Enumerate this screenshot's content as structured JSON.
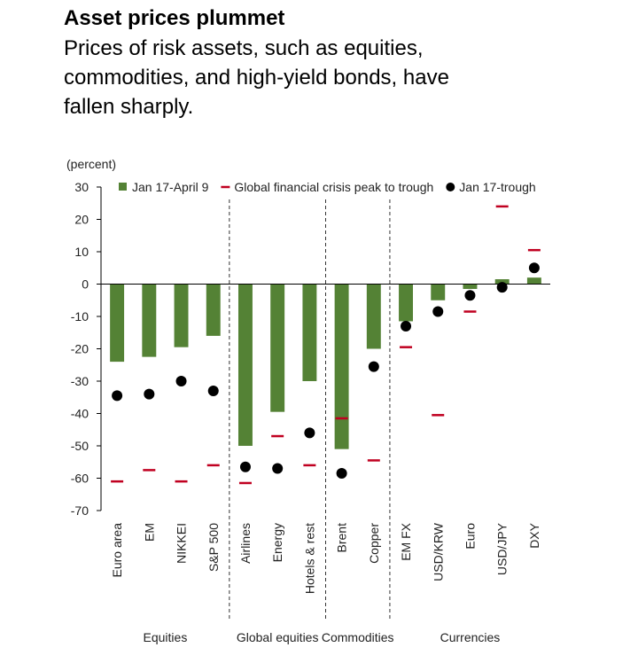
{
  "chart_data": {
    "type": "bar",
    "title": "Asset prices plummet",
    "subtitle": [
      "Prices of risk assets, such as equities,",
      "commodities, and high-yield bonds, have",
      "fallen sharply."
    ],
    "y_label": "(percent)",
    "groups": [
      {
        "label": "Equities",
        "categories": [
          "Euro area",
          "EM",
          "NIKKEI",
          "S&P 500"
        ]
      },
      {
        "label": "Global equities",
        "categories": [
          "Airlines",
          "Energy",
          "Hotels & rest"
        ]
      },
      {
        "label": "Commodities",
        "categories": [
          "Brent",
          "Copper"
        ]
      },
      {
        "label": "Currencies",
        "categories": [
          "EM FX",
          "USD/KRW",
          "Euro",
          "USD/JPY",
          "DXY"
        ]
      }
    ],
    "series": [
      {
        "name": "Jan 17-April 9",
        "mark": "bar",
        "color": "#548235",
        "values": [
          -24,
          -22.5,
          -19.5,
          -16,
          -50,
          -39.5,
          -30,
          -51,
          -20,
          -11.5,
          -5,
          -1.5,
          1.5,
          2
        ]
      },
      {
        "name": "Global financial crisis peak to trough",
        "mark": "dash",
        "color": "#c00020",
        "values": [
          -61,
          -57.5,
          -61,
          -56,
          -61.5,
          -47,
          -56,
          -41.5,
          -54.5,
          -19.5,
          -40.5,
          -8.5,
          24,
          10.5
        ]
      },
      {
        "name": "Jan 17-trough",
        "mark": "dot",
        "color": "#000000",
        "values": [
          -34.5,
          -34,
          -30,
          -33,
          -56.5,
          -57,
          -46,
          -58.5,
          -25.5,
          -13,
          -8.5,
          -3.5,
          -1,
          5
        ]
      }
    ],
    "ylim": [
      -70,
      30
    ],
    "yticks": [
      -70,
      -60,
      -50,
      -40,
      -30,
      -20,
      -10,
      0,
      10,
      20,
      30
    ]
  }
}
